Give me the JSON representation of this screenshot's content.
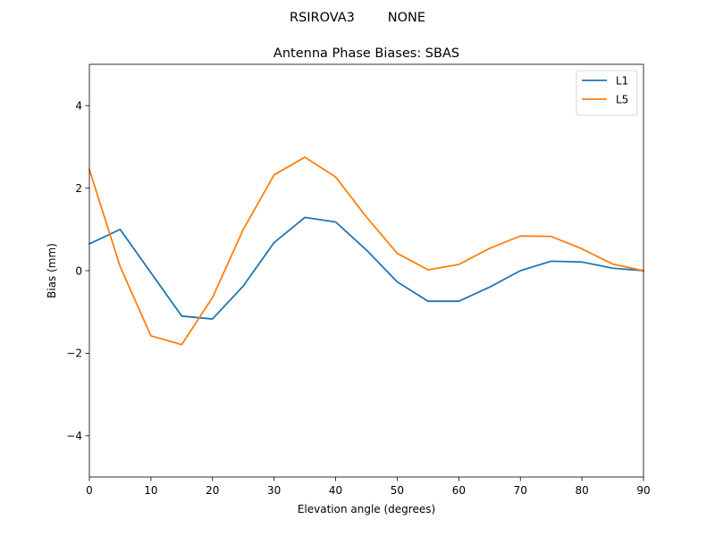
{
  "figure": {
    "suptitle": "RSIROVA3        NONE"
  },
  "chart_data": {
    "type": "line",
    "title": "Antenna Phase Biases: SBAS",
    "xlabel": "Elevation angle (degrees)",
    "ylabel": "Bias (mm)",
    "xlim": [
      0,
      90
    ],
    "ylim": [
      -5,
      5
    ],
    "xticks": [
      0,
      10,
      20,
      30,
      40,
      50,
      60,
      70,
      80,
      90
    ],
    "xtick_labels": [
      "0",
      "10",
      "20",
      "30",
      "40",
      "50",
      "60",
      "70",
      "80",
      "90"
    ],
    "yticks": [
      -4,
      -2,
      0,
      2,
      4
    ],
    "ytick_labels": [
      "−4",
      "−2",
      "0",
      "2",
      "4"
    ],
    "grid": false,
    "legend_position": "top-right",
    "x": [
      0,
      5,
      10,
      15,
      20,
      25,
      30,
      35,
      40,
      45,
      50,
      55,
      60,
      65,
      70,
      75,
      80,
      85,
      90
    ],
    "series": [
      {
        "name": "L1",
        "color": "#1f77b4",
        "values": [
          0.65,
          1.0,
          -0.05,
          -1.1,
          -1.17,
          -0.37,
          0.68,
          1.29,
          1.18,
          0.5,
          -0.27,
          -0.74,
          -0.74,
          -0.4,
          0.0,
          0.23,
          0.21,
          0.06,
          0.0
        ]
      },
      {
        "name": "L5",
        "color": "#ff7f0e",
        "values": [
          2.45,
          0.1,
          -1.58,
          -1.79,
          -0.65,
          1.0,
          2.32,
          2.75,
          2.27,
          1.3,
          0.42,
          0.02,
          0.15,
          0.54,
          0.84,
          0.83,
          0.53,
          0.16,
          0.0
        ]
      }
    ]
  }
}
